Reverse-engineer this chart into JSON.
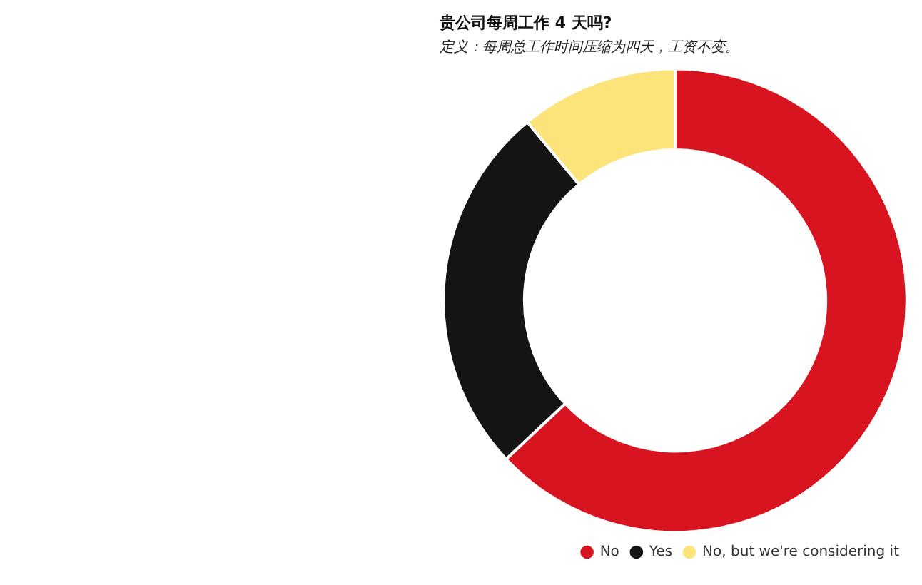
{
  "chart_data": {
    "type": "donut",
    "title": "贵公司每周工作 4 天吗?",
    "subtitle": "定义：每周总工作时间压缩为四天，工资不变。",
    "categories": [
      "No",
      "Yes",
      "No, but we're considering it"
    ],
    "values": [
      63,
      26,
      11
    ],
    "colors": [
      "#d7141f",
      "#141414",
      "#fde47a"
    ],
    "legend": "bottom right"
  }
}
